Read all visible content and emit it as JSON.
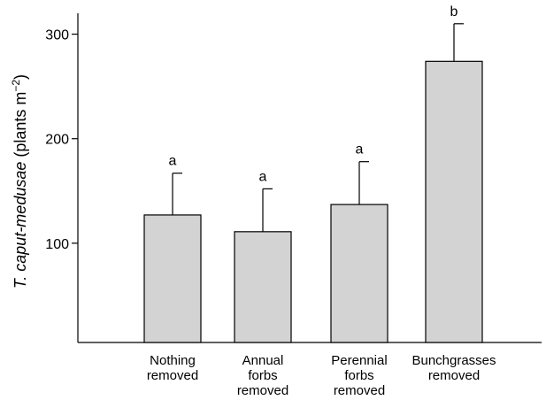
{
  "chart_data": {
    "type": "bar",
    "categories": [
      [
        "Nothing",
        "removed"
      ],
      [
        "Annual",
        "forbs",
        "removed"
      ],
      [
        "Perennial",
        "forbs",
        "removed"
      ],
      [
        "Bunchgrasses",
        "removed"
      ]
    ],
    "values": [
      127,
      111,
      137,
      274
    ],
    "errors": [
      40,
      41,
      41,
      36
    ],
    "significance_letters": [
      "a",
      "a",
      "a",
      "b"
    ],
    "ylabel": {
      "italic": "T. caput-medusae",
      "plain": " (plants m",
      "superscript": "−2",
      "close": ")"
    },
    "yticks": [
      100,
      200,
      300
    ],
    "ylim": [
      5,
      320
    ],
    "grid": false,
    "colors": {
      "bar_fill": "#d3d3d3",
      "stroke": "#000000"
    }
  }
}
